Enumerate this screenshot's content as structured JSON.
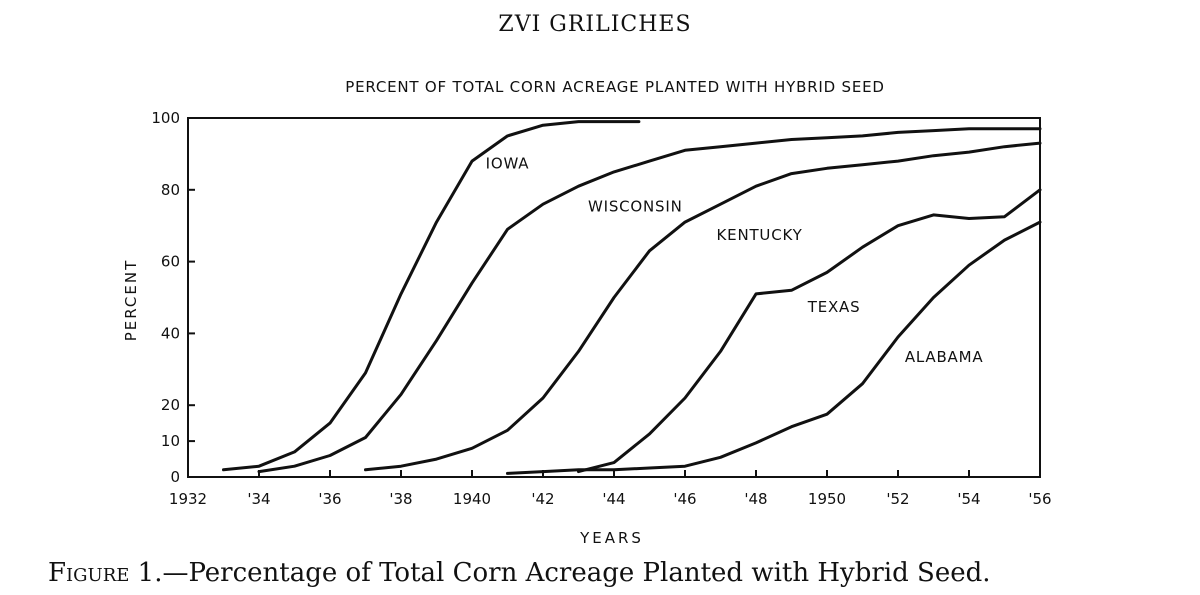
{
  "header": {
    "author": "ZVI GRILICHES"
  },
  "caption": {
    "figure": "Figure 1.",
    "text": "—Percentage of Total Corn Acreage Planted with Hybrid Seed."
  },
  "chart_data": {
    "type": "line",
    "title": "PERCENT OF TOTAL CORN ACREAGE PLANTED WITH HYBRID SEED",
    "xlabel": "YEARS",
    "ylabel": "PERCENT",
    "xlim": [
      1932,
      1956
    ],
    "ylim": [
      0,
      100
    ],
    "x_ticks": [
      {
        "value": 1932,
        "label": "1932"
      },
      {
        "value": 1934,
        "label": "'34"
      },
      {
        "value": 1936,
        "label": "'36"
      },
      {
        "value": 1938,
        "label": "'38"
      },
      {
        "value": 1940,
        "label": "1940"
      },
      {
        "value": 1942,
        "label": "'42"
      },
      {
        "value": 1944,
        "label": "'44"
      },
      {
        "value": 1946,
        "label": "'46"
      },
      {
        "value": 1948,
        "label": "'48"
      },
      {
        "value": 1950,
        "label": "1950"
      },
      {
        "value": 1952,
        "label": "'52"
      },
      {
        "value": 1954,
        "label": "'54"
      },
      {
        "value": 1956,
        "label": "'56"
      }
    ],
    "y_ticks": [
      0,
      10,
      20,
      40,
      60,
      80,
      100
    ],
    "grid": false,
    "line_color": "#111111",
    "series": [
      {
        "name": "IOWA",
        "label_at": [
          1941,
          86
        ],
        "x": [
          1933,
          1934,
          1935,
          1936,
          1937,
          1938,
          1939,
          1940,
          1941,
          1942,
          1943,
          1944.7
        ],
        "y": [
          2,
          3,
          7,
          15,
          29,
          51,
          71,
          88,
          95,
          98,
          99,
          99
        ]
      },
      {
        "name": "WISCONSIN",
        "label_at": [
          1944.6,
          74
        ],
        "x": [
          1934,
          1935,
          1936,
          1937,
          1938,
          1939,
          1940,
          1941,
          1942,
          1943,
          1944,
          1945,
          1946,
          1947,
          1948,
          1949,
          1950,
          1951,
          1952,
          1953,
          1954,
          1955,
          1956
        ],
        "y": [
          1.5,
          3,
          6,
          11,
          23,
          38,
          54,
          69,
          76,
          81,
          85,
          88,
          91,
          92,
          93,
          94,
          94.5,
          95,
          96,
          96.5,
          97,
          97,
          97
        ]
      },
      {
        "name": "KENTUCKY",
        "label_at": [
          1948.1,
          66
        ],
        "x": [
          1937,
          1938,
          1939,
          1940,
          1941,
          1942,
          1943,
          1944,
          1945,
          1946,
          1947,
          1948,
          1949,
          1950,
          1951,
          1952,
          1953,
          1954,
          1955,
          1956
        ],
        "y": [
          2,
          3,
          5,
          8,
          13,
          22,
          35,
          50,
          63,
          71,
          76,
          81,
          84.5,
          86,
          87,
          88,
          89.5,
          90.5,
          92,
          93
        ]
      },
      {
        "name": "TEXAS",
        "label_at": [
          1950.2,
          46
        ],
        "x": [
          1943,
          1944,
          1945,
          1946,
          1947,
          1948,
          1949,
          1950,
          1951,
          1952,
          1953,
          1954,
          1955,
          1956
        ],
        "y": [
          1.5,
          4,
          12,
          22,
          35,
          51,
          52,
          57,
          64,
          70,
          73,
          72,
          72.5,
          80
        ]
      },
      {
        "name": "ALABAMA",
        "label_at": [
          1953.3,
          32
        ],
        "x": [
          1941,
          1942,
          1943,
          1944,
          1945,
          1946,
          1947,
          1948,
          1949,
          1950,
          1951,
          1952,
          1953,
          1954,
          1955,
          1956
        ],
        "y": [
          1,
          1.5,
          2,
          2,
          2.5,
          3,
          5.5,
          9.5,
          14,
          17.5,
          26,
          39,
          50,
          59,
          66,
          71
        ]
      }
    ]
  }
}
